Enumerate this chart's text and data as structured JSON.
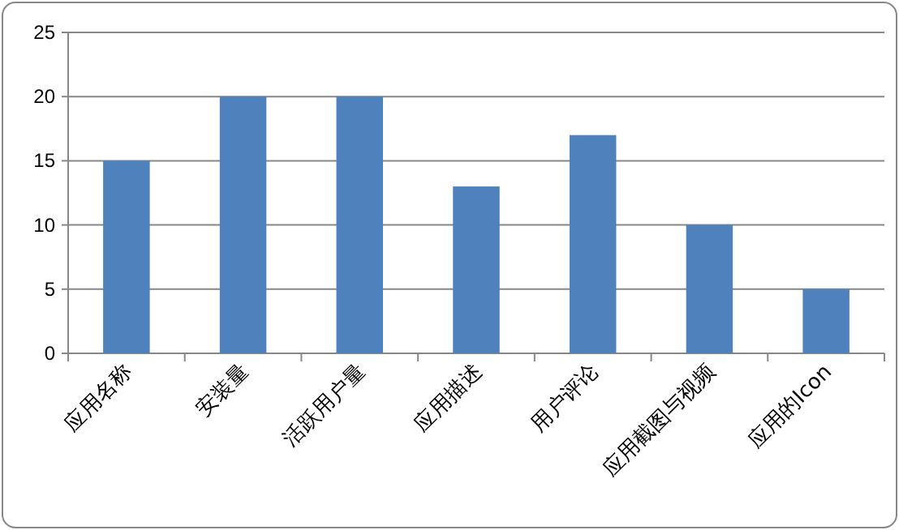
{
  "chart_data": {
    "type": "bar",
    "categories": [
      "应用名称",
      "安装量",
      "活跃用户量",
      "应用描述",
      "用户评论",
      "应用截图与视频",
      "应用的Icon"
    ],
    "values": [
      15,
      20,
      20,
      13,
      17,
      10,
      5
    ],
    "color": "#4f81bd",
    "ylim": [
      0,
      25
    ],
    "yticks": [
      0,
      5,
      10,
      15,
      20,
      25
    ],
    "grid": "y"
  }
}
